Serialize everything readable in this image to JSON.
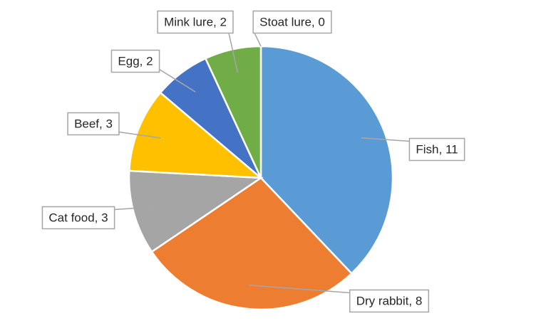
{
  "chart_data": {
    "type": "pie",
    "title": "",
    "legend": "none",
    "slices": [
      {
        "label": "Fish",
        "value": 11,
        "data_label": "Fish, 11",
        "color": "#5B9BD5"
      },
      {
        "label": "Dry rabbit",
        "value": 8,
        "data_label": "Dry rabbit, 8",
        "color": "#ED7D31"
      },
      {
        "label": "Cat food",
        "value": 3,
        "data_label": "Cat food, 3",
        "color": "#A5A5A5"
      },
      {
        "label": "Beef",
        "value": 3,
        "data_label": "Beef, 3",
        "color": "#FFC000"
      },
      {
        "label": "Egg",
        "value": 2,
        "data_label": "Egg, 2",
        "color": "#4472C4"
      },
      {
        "label": "Mink lure",
        "value": 2,
        "data_label": "Mink lure, 2",
        "color": "#70AD47"
      },
      {
        "label": "Stoat lure",
        "value": 0,
        "data_label": "Stoat lure, 0",
        "color": "#264478"
      }
    ]
  }
}
